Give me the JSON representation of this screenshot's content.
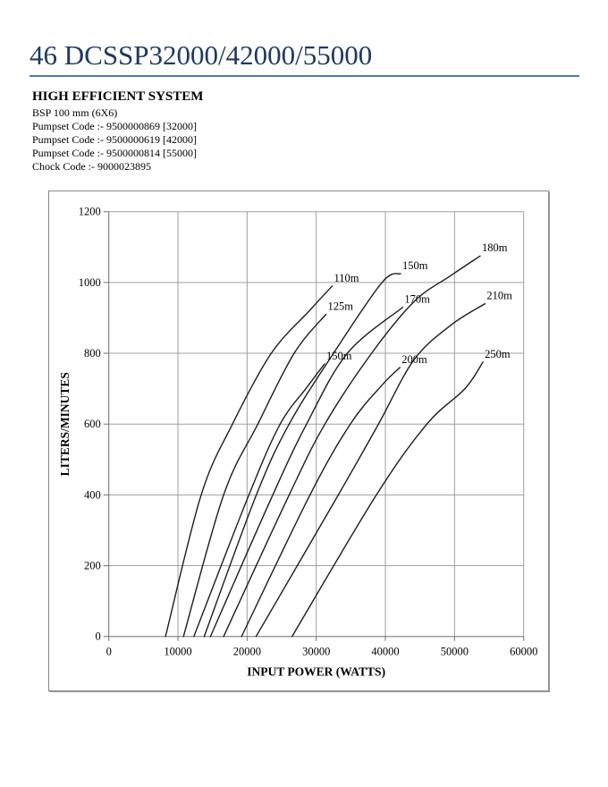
{
  "header": {
    "title": "46 DCSSP32000/42000/55000",
    "section_heading": "HIGH EFFICIENT SYSTEM",
    "spec_lines": [
      "BSP 100 mm (6X6)",
      "Pumpset Code :- 9500000869 [32000]",
      "Pumpset Code :- 9500000619 [42000]",
      "Pumpset Code :- 9500000814 [55000]",
      "Chock Code :- 9000023895"
    ]
  },
  "colors": {
    "title_text": "#1f3a60",
    "title_rule": "#4a7ab5",
    "grid_line": "#a0a0a0",
    "axis_line": "#707070",
    "curve": "#1c1c1c",
    "label_text": "#000000"
  },
  "chart_data": {
    "type": "line",
    "title": "",
    "xlabel": "INPUT POWER (WATTS)",
    "ylabel": "LITERS/MINUTES",
    "xlim": [
      0,
      60000
    ],
    "ylim": [
      0,
      1200
    ],
    "x_ticks": [
      0,
      10000,
      20000,
      30000,
      40000,
      50000,
      60000
    ],
    "y_ticks": [
      0,
      200,
      400,
      600,
      800,
      1000,
      1200
    ],
    "grid": true,
    "legend_position": "curve-end-labels",
    "x_units": "watts",
    "y_units": "liters/minute",
    "series_meaning": "pump head depth curves; flow (L/min) vs input power (W)",
    "series": [
      {
        "name": "110m",
        "points": [
          [
            8200,
            0
          ],
          [
            13360,
            400
          ],
          [
            17890,
            600
          ],
          [
            23500,
            800
          ],
          [
            29000,
            920
          ],
          [
            32300,
            990
          ]
        ]
      },
      {
        "name": "125m",
        "points": [
          [
            10800,
            0
          ],
          [
            16600,
            400
          ],
          [
            21550,
            600
          ],
          [
            26800,
            800
          ],
          [
            31400,
            910
          ]
        ]
      },
      {
        "name": "150m",
        "points": [
          [
            12300,
            0
          ],
          [
            20260,
            400
          ],
          [
            24780,
            600
          ],
          [
            28500,
            700
          ],
          [
            31200,
            770
          ]
        ]
      },
      {
        "name": "150m",
        "points": [
          [
            13800,
            0
          ],
          [
            21340,
            400
          ],
          [
            26080,
            600
          ],
          [
            32500,
            800
          ],
          [
            39500,
            1000
          ],
          [
            42200,
            1025
          ]
        ]
      },
      {
        "name": "170m",
        "points": [
          [
            14700,
            0
          ],
          [
            23710,
            400
          ],
          [
            28600,
            600
          ],
          [
            34500,
            800
          ],
          [
            42500,
            930
          ]
        ]
      },
      {
        "name": "180m",
        "points": [
          [
            16600,
            0
          ],
          [
            26080,
            400
          ],
          [
            31250,
            600
          ],
          [
            38000,
            800
          ],
          [
            44150,
            946
          ],
          [
            49500,
            1020
          ],
          [
            53700,
            1075
          ]
        ]
      },
      {
        "name": "200m",
        "points": [
          [
            19200,
            0
          ],
          [
            29100,
            400
          ],
          [
            34930,
            600
          ],
          [
            39500,
            710
          ],
          [
            42100,
            760
          ]
        ]
      },
      {
        "name": "210m",
        "points": [
          [
            21300,
            0
          ],
          [
            33190,
            400
          ],
          [
            39000,
            600
          ],
          [
            44150,
            782
          ],
          [
            49500,
            880
          ],
          [
            54400,
            940
          ]
        ]
      },
      {
        "name": "250m",
        "points": [
          [
            26500,
            0
          ],
          [
            38700,
            400
          ],
          [
            46000,
            600
          ],
          [
            51500,
            700
          ],
          [
            54100,
            775
          ]
        ]
      }
    ]
  }
}
